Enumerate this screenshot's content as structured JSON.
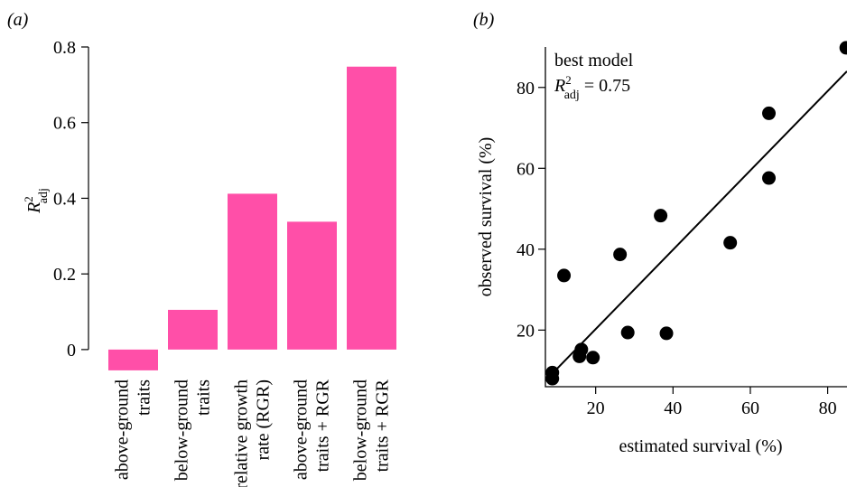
{
  "panels": {
    "a_label": "(a)",
    "b_label": "(b)"
  },
  "colors": {
    "bar": "#ff4fa8",
    "axis": "#000000",
    "point": "#000000",
    "line": "#000000",
    "background": "#ffffff"
  },
  "chart_data": [
    {
      "type": "bar",
      "panel": "(a)",
      "title": "",
      "xlabel": "",
      "ylabel": "R2adj",
      "ylabel_main": "R",
      "ylabel_sup": "2",
      "ylabel_sub": "adj",
      "ylim": [
        -0.06,
        0.8
      ],
      "yticks": [
        0,
        0.2,
        0.4,
        0.6,
        0.8
      ],
      "ytick_labels": [
        "0",
        "0.2",
        "0.4",
        "0.6",
        "0.8"
      ],
      "categories": [
        [
          "above-ground",
          "traits"
        ],
        [
          "below-ground",
          "traits"
        ],
        [
          "relative growth",
          "rate (RGR)"
        ],
        [
          "above-ground",
          "traits + RGR"
        ],
        [
          "below-ground",
          "traits + RGR"
        ]
      ],
      "values": [
        -0.055,
        0.105,
        0.412,
        0.338,
        0.748
      ],
      "grid": false
    },
    {
      "type": "scatter",
      "panel": "(b)",
      "title": "",
      "xlabel": "estimated survival (%)",
      "ylabel": "observed survival (%)",
      "xlim": [
        7,
        85
      ],
      "ylim": [
        6,
        90
      ],
      "xticks": [
        20,
        40,
        60,
        80
      ],
      "xtick_labels": [
        "20",
        "40",
        "60",
        "80"
      ],
      "yticks": [
        20,
        40,
        60,
        80
      ],
      "ytick_labels": [
        "20",
        "40",
        "60",
        "80"
      ],
      "points": [
        {
          "x": 8.8,
          "y": 9.5
        },
        {
          "x": 8.8,
          "y": 8.0
        },
        {
          "x": 11.8,
          "y": 33.5
        },
        {
          "x": 15.8,
          "y": 13.5
        },
        {
          "x": 16.3,
          "y": 15.2
        },
        {
          "x": 19.3,
          "y": 13.2
        },
        {
          "x": 26.3,
          "y": 38.7
        },
        {
          "x": 28.3,
          "y": 19.4
        },
        {
          "x": 36.8,
          "y": 48.3
        },
        {
          "x": 38.3,
          "y": 19.2
        },
        {
          "x": 54.8,
          "y": 41.6
        },
        {
          "x": 64.8,
          "y": 57.6
        },
        {
          "x": 64.8,
          "y": 73.6
        },
        {
          "x": 84.8,
          "y": 89.8
        }
      ],
      "fit_line": {
        "x": [
          7,
          85
        ],
        "y": [
          7.5,
          84.0
        ]
      },
      "annotation": {
        "line1": "best model",
        "r_main": "R",
        "r_sup": "2",
        "r_sub": "adj",
        "r_value": " = 0.75"
      },
      "grid": false
    }
  ]
}
